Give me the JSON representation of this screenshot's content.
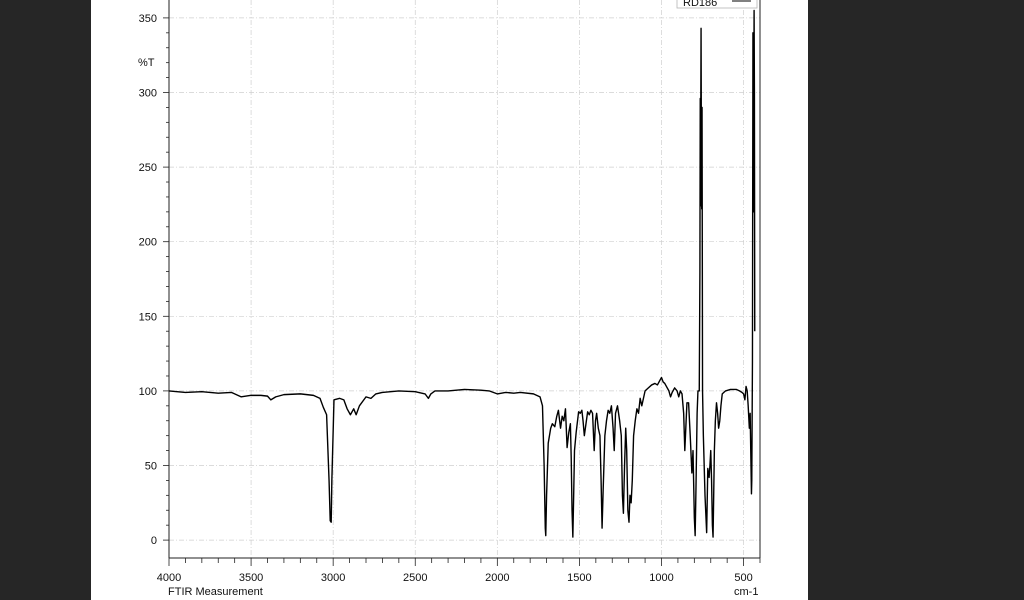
{
  "chart_data": {
    "type": "line",
    "ylabel": "%T",
    "xlabel_unit": "cm-1",
    "footer": "FTIR Measurement",
    "xlim": [
      4000,
      400
    ],
    "ylim": [
      -12,
      362
    ],
    "x_reversed": true,
    "grid": true,
    "legend": {
      "position": "top-right",
      "entries": [
        "RD186"
      ]
    },
    "x_ticks": [
      4000,
      3500,
      3000,
      2500,
      2000,
      1500,
      1000,
      500
    ],
    "y_ticks": [
      0,
      50,
      100,
      150,
      200,
      250,
      300,
      350
    ],
    "series": [
      {
        "name": "RD186",
        "color": "#000000",
        "points": [
          [
            4000,
            100
          ],
          [
            3900,
            99
          ],
          [
            3800,
            99.5
          ],
          [
            3700,
            98.5
          ],
          [
            3620,
            99
          ],
          [
            3560,
            96
          ],
          [
            3500,
            97
          ],
          [
            3440,
            97
          ],
          [
            3400,
            96.5
          ],
          [
            3380,
            94
          ],
          [
            3350,
            96
          ],
          [
            3300,
            97.5
          ],
          [
            3200,
            98
          ],
          [
            3120,
            97
          ],
          [
            3080,
            95
          ],
          [
            3060,
            89
          ],
          [
            3040,
            84
          ],
          [
            3025,
            40
          ],
          [
            3018,
            13
          ],
          [
            3012,
            12
          ],
          [
            3008,
            40
          ],
          [
            2995,
            94
          ],
          [
            2960,
            95
          ],
          [
            2935,
            94
          ],
          [
            2915,
            88
          ],
          [
            2895,
            84
          ],
          [
            2875,
            88
          ],
          [
            2860,
            84
          ],
          [
            2840,
            90
          ],
          [
            2800,
            96
          ],
          [
            2770,
            95
          ],
          [
            2740,
            98
          ],
          [
            2700,
            99
          ],
          [
            2600,
            100
          ],
          [
            2500,
            99.5
          ],
          [
            2440,
            98
          ],
          [
            2420,
            95
          ],
          [
            2405,
            98
          ],
          [
            2380,
            100
          ],
          [
            2300,
            100
          ],
          [
            2200,
            101
          ],
          [
            2100,
            100.5
          ],
          [
            2050,
            100
          ],
          [
            2000,
            98
          ],
          [
            1950,
            99
          ],
          [
            1900,
            98.5
          ],
          [
            1860,
            99
          ],
          [
            1780,
            98
          ],
          [
            1740,
            96
          ],
          [
            1725,
            90
          ],
          [
            1715,
            50
          ],
          [
            1708,
            8
          ],
          [
            1705,
            3
          ],
          [
            1700,
            30
          ],
          [
            1690,
            65
          ],
          [
            1675,
            75
          ],
          [
            1665,
            78
          ],
          [
            1650,
            76
          ],
          [
            1638,
            83
          ],
          [
            1628,
            87
          ],
          [
            1615,
            75
          ],
          [
            1605,
            83
          ],
          [
            1595,
            80
          ],
          [
            1585,
            88
          ],
          [
            1575,
            62
          ],
          [
            1565,
            72
          ],
          [
            1555,
            78
          ],
          [
            1550,
            55
          ],
          [
            1545,
            20
          ],
          [
            1540,
            2
          ],
          [
            1535,
            30
          ],
          [
            1530,
            60
          ],
          [
            1520,
            72
          ],
          [
            1505,
            86
          ],
          [
            1495,
            85
          ],
          [
            1485,
            87
          ],
          [
            1478,
            80
          ],
          [
            1470,
            70
          ],
          [
            1460,
            78
          ],
          [
            1450,
            86
          ],
          [
            1440,
            84
          ],
          [
            1430,
            87
          ],
          [
            1420,
            85
          ],
          [
            1410,
            60
          ],
          [
            1402,
            80
          ],
          [
            1395,
            85
          ],
          [
            1385,
            75
          ],
          [
            1375,
            70
          ],
          [
            1368,
            40
          ],
          [
            1362,
            8
          ],
          [
            1355,
            35
          ],
          [
            1345,
            70
          ],
          [
            1335,
            80
          ],
          [
            1325,
            87
          ],
          [
            1315,
            85
          ],
          [
            1305,
            90
          ],
          [
            1295,
            75
          ],
          [
            1288,
            60
          ],
          [
            1280,
            85
          ],
          [
            1268,
            90
          ],
          [
            1255,
            80
          ],
          [
            1245,
            70
          ],
          [
            1238,
            30
          ],
          [
            1232,
            18
          ],
          [
            1225,
            50
          ],
          [
            1218,
            75
          ],
          [
            1212,
            60
          ],
          [
            1205,
            20
          ],
          [
            1198,
            12
          ],
          [
            1192,
            30
          ],
          [
            1185,
            25
          ],
          [
            1178,
            40
          ],
          [
            1170,
            70
          ],
          [
            1160,
            80
          ],
          [
            1150,
            88
          ],
          [
            1140,
            85
          ],
          [
            1130,
            95
          ],
          [
            1120,
            90
          ],
          [
            1110,
            95
          ],
          [
            1100,
            100
          ],
          [
            1080,
            102
          ],
          [
            1060,
            104
          ],
          [
            1040,
            105
          ],
          [
            1025,
            104
          ],
          [
            1010,
            107
          ],
          [
            1000,
            109
          ],
          [
            990,
            106
          ],
          [
            980,
            105
          ],
          [
            970,
            103
          ],
          [
            955,
            100
          ],
          [
            945,
            96
          ],
          [
            935,
            99
          ],
          [
            920,
            102
          ],
          [
            905,
            100
          ],
          [
            895,
            96
          ],
          [
            885,
            100
          ],
          [
            875,
            98
          ],
          [
            865,
            85
          ],
          [
            858,
            60
          ],
          [
            850,
            80
          ],
          [
            845,
            92
          ],
          [
            835,
            92
          ],
          [
            825,
            70
          ],
          [
            815,
            45
          ],
          [
            808,
            60
          ],
          [
            800,
            15
          ],
          [
            795,
            3
          ],
          [
            790,
            35
          ],
          [
            783,
            85
          ],
          [
            778,
            100
          ],
          [
            770,
            100
          ],
          [
            766,
            180
          ],
          [
            764,
            296
          ],
          [
            762,
            224
          ],
          [
            761,
            280
          ],
          [
            759,
            343
          ],
          [
            757,
            260
          ],
          [
            755,
            222
          ],
          [
            753,
            290
          ],
          [
            750,
            100
          ],
          [
            745,
            70
          ],
          [
            735,
            30
          ],
          [
            725,
            5
          ],
          [
            718,
            48
          ],
          [
            710,
            42
          ],
          [
            705,
            50
          ],
          [
            700,
            60
          ],
          [
            695,
            40
          ],
          [
            690,
            10
          ],
          [
            686,
            2
          ],
          [
            682,
            30
          ],
          [
            678,
            60
          ],
          [
            672,
            80
          ],
          [
            665,
            92
          ],
          [
            658,
            85
          ],
          [
            652,
            75
          ],
          [
            645,
            80
          ],
          [
            638,
            90
          ],
          [
            630,
            98
          ],
          [
            610,
            100
          ],
          [
            580,
            101
          ],
          [
            545,
            101
          ],
          [
            525,
            100
          ],
          [
            510,
            99
          ],
          [
            500,
            98
          ],
          [
            492,
            94
          ],
          [
            485,
            103
          ],
          [
            478,
            100
          ],
          [
            472,
            90
          ],
          [
            465,
            75
          ],
          [
            460,
            85
          ],
          [
            452,
            31
          ],
          [
            450,
            40
          ],
          [
            446,
            120
          ],
          [
            443,
            340
          ],
          [
            440,
            220
          ],
          [
            438,
            280
          ],
          [
            436,
            355
          ],
          [
            434,
            300
          ],
          [
            432,
            140
          ]
        ]
      }
    ]
  }
}
